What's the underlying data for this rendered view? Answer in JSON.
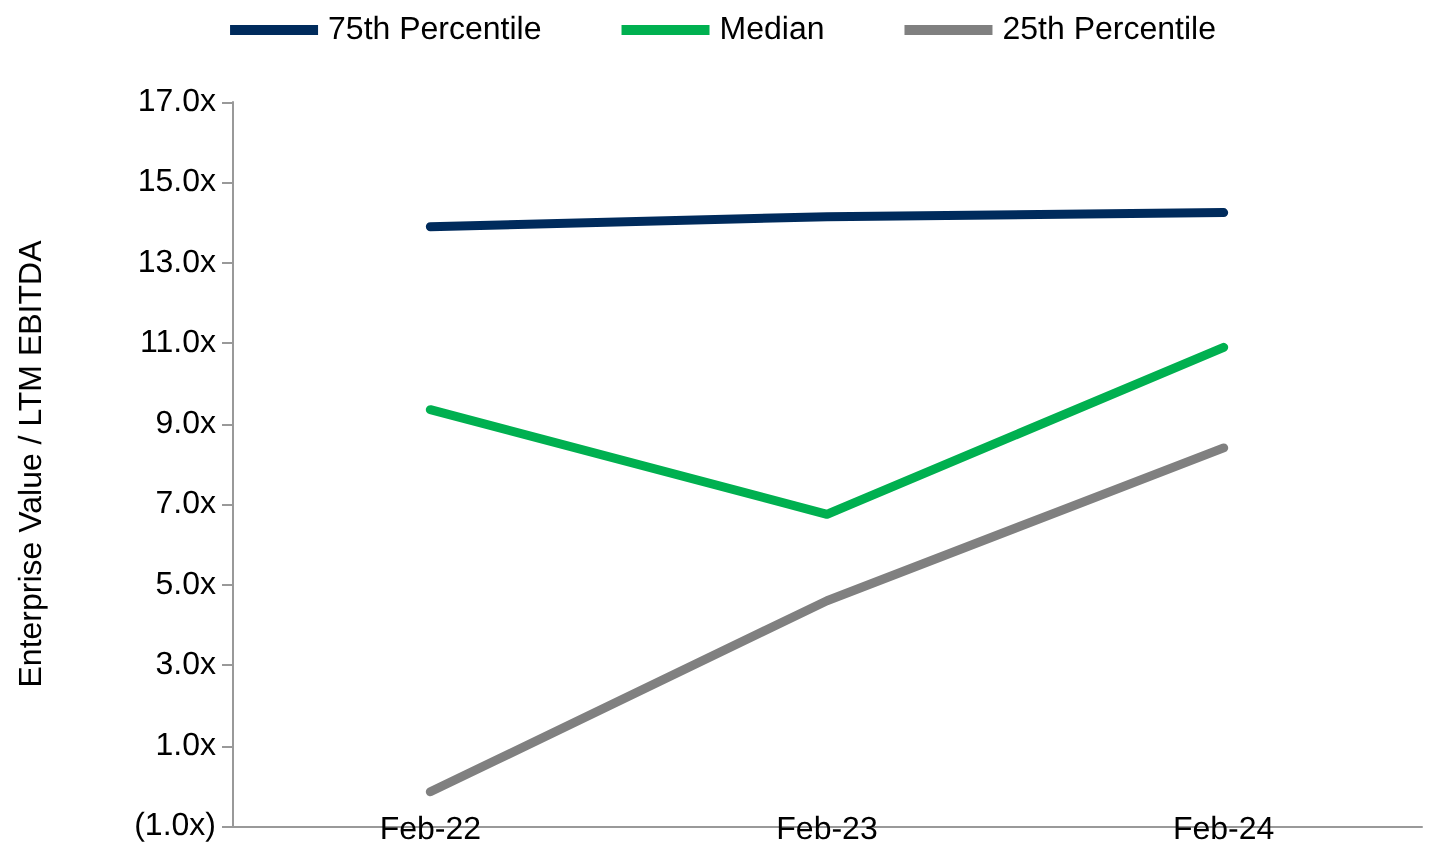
{
  "chart_data": {
    "type": "line",
    "ylabel": "Enterprise Value / LTM EBITDA",
    "categories": [
      "Feb-22",
      "Feb-23",
      "Feb-24"
    ],
    "series": [
      {
        "name": "75th Percentile",
        "color": "#002b5c",
        "values": [
          13.9,
          14.15,
          14.25
        ]
      },
      {
        "name": "Median",
        "color": "#00b050",
        "values": [
          9.35,
          6.75,
          10.9
        ]
      },
      {
        "name": "25th Percentile",
        "color": "#808080",
        "values": [
          -0.15,
          4.6,
          8.4
        ]
      }
    ],
    "ylim": [
      -1,
      17
    ],
    "yticks": [
      {
        "value": -1,
        "label": "(1.0x)"
      },
      {
        "value": 1,
        "label": "1.0x"
      },
      {
        "value": 3,
        "label": "3.0x"
      },
      {
        "value": 5,
        "label": "5.0x"
      },
      {
        "value": 7,
        "label": "7.0x"
      },
      {
        "value": 9,
        "label": "9.0x"
      },
      {
        "value": 11,
        "label": "11.0x"
      },
      {
        "value": 13,
        "label": "13.0x"
      },
      {
        "value": 15,
        "label": "15.0x"
      },
      {
        "value": 17,
        "label": "17.0x"
      }
    ],
    "grid": false,
    "legend": "top",
    "marker": "none",
    "line_style": "solid"
  }
}
